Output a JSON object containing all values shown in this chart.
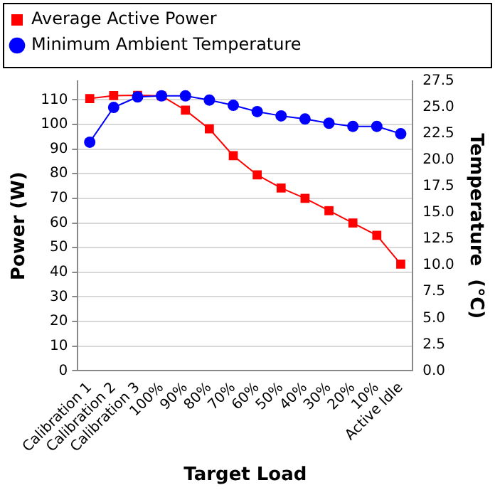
{
  "chart_data": {
    "type": "line",
    "xlabel": "Target Load",
    "ylabel": "Power (W)",
    "y2label": "Temperature  (°C)",
    "categories": [
      "Calibration 1",
      "Calibration 2",
      "Calibration 3",
      "100%",
      "90%",
      "80%",
      "70%",
      "60%",
      "50%",
      "40%",
      "30%",
      "20%",
      "10%",
      "Active Idle"
    ],
    "series": [
      {
        "name": "Average Active Power",
        "color": "#ff0000",
        "marker": "square",
        "values": [
          110.5,
          111.7,
          111.8,
          111.6,
          105.8,
          98.2,
          87.3,
          79.5,
          74.2,
          70,
          65,
          60,
          55,
          43.3
        ]
      },
      {
        "name": "Minimum Ambient Temperature",
        "color": "#0000ff",
        "marker": "circle",
        "axis": "y2",
        "values": [
          21.7,
          25.0,
          26.0,
          26.1,
          26.1,
          25.7,
          25.2,
          24.6,
          24.2,
          23.9,
          23.5,
          23.2,
          23.2,
          22.5
        ]
      }
    ],
    "ylim": [
      0,
      117.6
    ],
    "yticks": [
      0,
      10,
      20,
      30,
      40,
      50,
      60,
      70,
      80,
      90,
      100,
      110
    ],
    "y2lim": [
      0,
      27.5
    ],
    "y2ticks": [
      {
        "value": 0,
        "label": "0.0"
      },
      {
        "value": 2.5,
        "label": "2.5"
      },
      {
        "value": 5,
        "label": "5.0"
      },
      {
        "value": 7.5,
        "label": "7.5"
      },
      {
        "value": 10,
        "label": "10.0"
      },
      {
        "value": 12.5,
        "label": "12.5"
      },
      {
        "value": 15,
        "label": "15.0"
      },
      {
        "value": 17.5,
        "label": "17.5"
      },
      {
        "value": 20,
        "label": "20.0"
      },
      {
        "value": 22.5,
        "label": "22.5"
      },
      {
        "value": 25,
        "label": "25.0"
      },
      {
        "value": 27.5,
        "label": "27.5"
      }
    ],
    "grid": "y",
    "legend": "top",
    "line_style": "solid"
  }
}
